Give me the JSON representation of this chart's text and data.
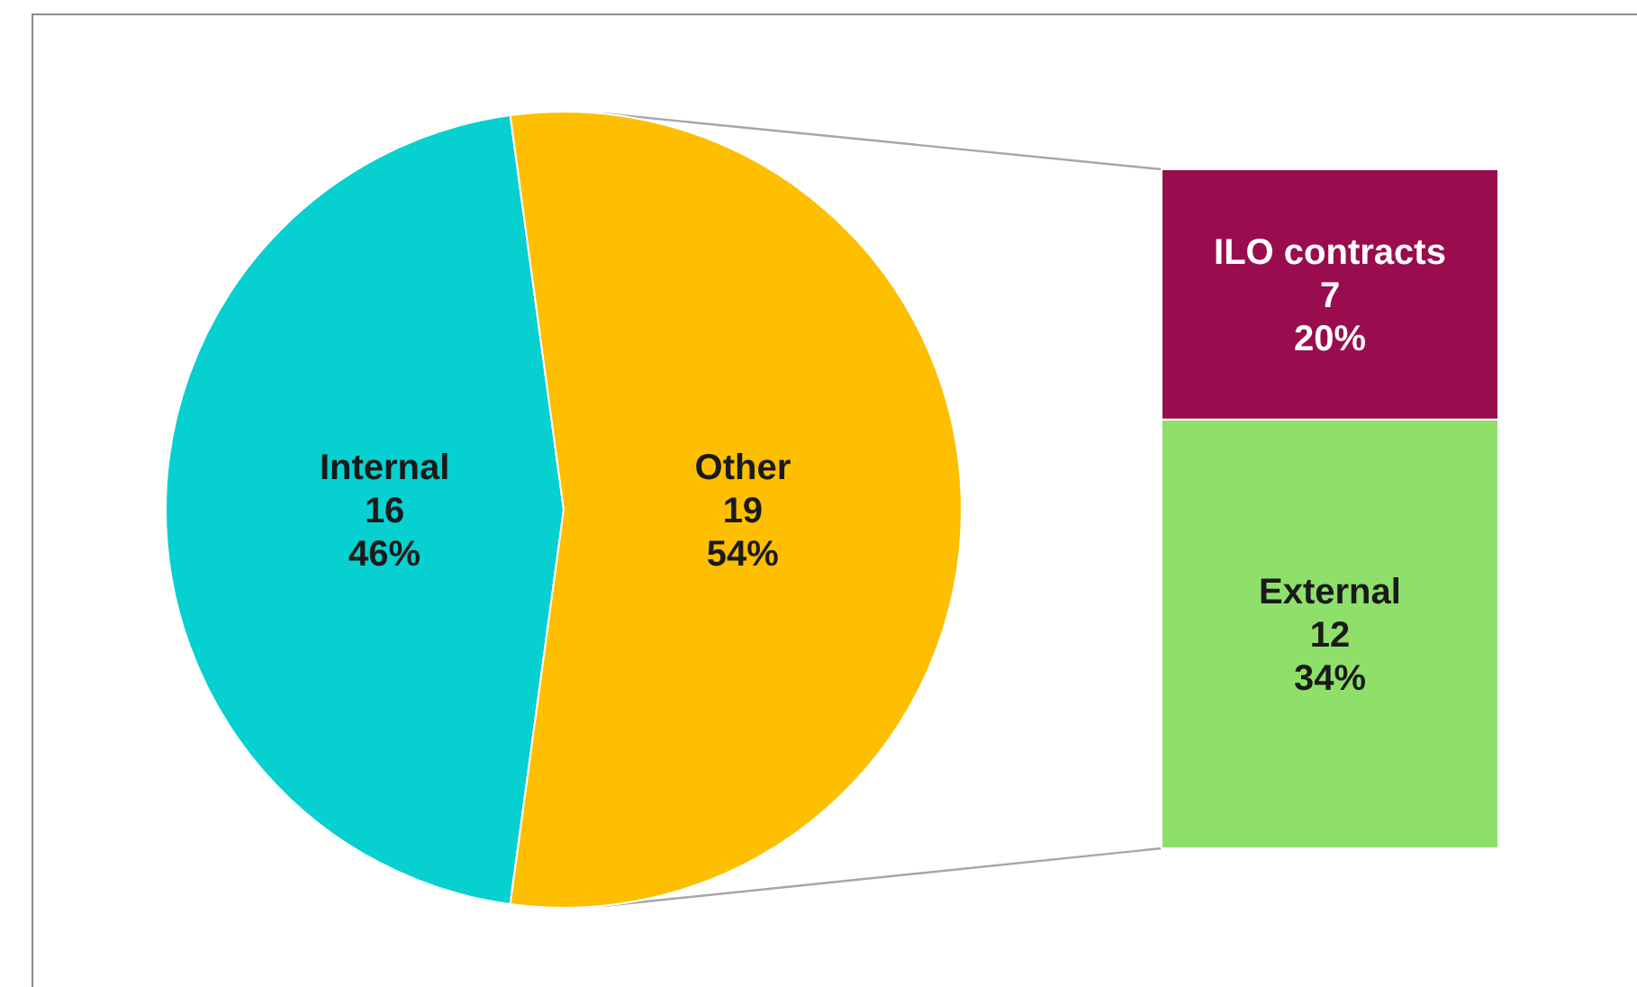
{
  "chart_data": [
    {
      "type": "pie",
      "categories": [
        "Internal",
        "Other"
      ],
      "values": [
        16,
        19
      ],
      "colors": [
        "#06d0d0",
        "#fdbf00"
      ],
      "value_labels": [
        "16\n46%",
        "19\n54%"
      ]
    },
    {
      "type": "bar",
      "stacked": true,
      "categories": [
        null
      ],
      "series": [
        {
          "name": "External",
          "color": "#8ee06a",
          "values": [
            12
          ],
          "value_labels": [
            "12\n34%"
          ]
        },
        {
          "name": "ILO contracts",
          "color": "#990d4f",
          "values": [
            7
          ],
          "value_labels": [
            "7\n20%"
          ]
        }
      ]
    }
  ]
}
